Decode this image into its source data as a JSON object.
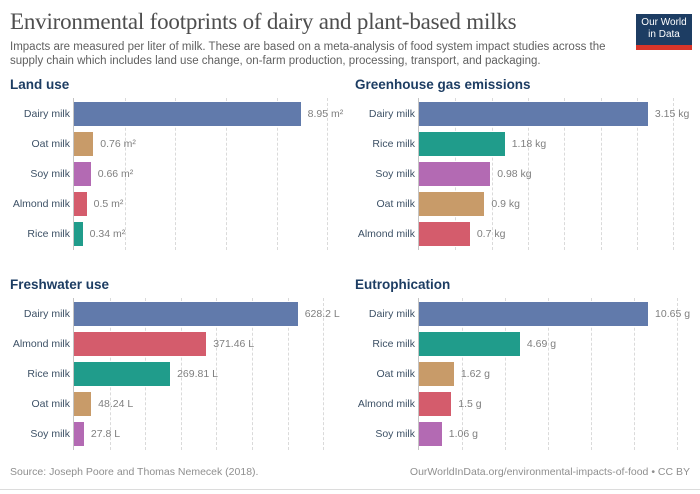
{
  "header": {
    "title": "Environmental footprints of dairy and plant-based milks",
    "subtitle": "Impacts are measured per liter of milk. These are based on a meta-analysis of food system impact studies across the supply chain which includes land use change, on-farm production, processing, transport, and packaging.",
    "logo": {
      "line1": "Our World",
      "line2": "in Data",
      "bg": "#1d3d63",
      "stripe": "#d8352a"
    }
  },
  "palette": {
    "Dairy milk": "#617aab",
    "Oat milk": "#c89b69",
    "Soy milk": "#b36ab3",
    "Almond milk": "#d45c6c",
    "Rice milk": "#209c8b"
  },
  "colors": {
    "heading": "#1d3d63",
    "category_label": "#3d5166",
    "value_label": "#7f7f7f",
    "axis_line": "#c4c4c4",
    "gridline": "#dadada"
  },
  "chart_data": [
    {
      "type": "bar",
      "title": "Land use",
      "unit": "m²",
      "categories": [
        "Dairy milk",
        "Oat milk",
        "Soy milk",
        "Almond milk",
        "Rice milk"
      ],
      "values": [
        8.95,
        0.76,
        0.66,
        0.5,
        0.34
      ],
      "value_labels": [
        "8.95 m²",
        "0.76 m²",
        "0.66 m²",
        "0.5 m²",
        "0.34 m²"
      ],
      "xmax": 10.7,
      "grid_step": 2,
      "grid": "dashed-vertical",
      "legend": "none"
    },
    {
      "type": "bar",
      "title": "Greenhouse gas emissions",
      "unit": "kg",
      "categories": [
        "Dairy milk",
        "Rice milk",
        "Soy milk",
        "Oat milk",
        "Almond milk"
      ],
      "values": [
        3.15,
        1.18,
        0.98,
        0.9,
        0.7
      ],
      "value_labels": [
        "3.15 kg",
        "1.18 kg",
        "0.98 kg",
        "0.9 kg",
        "0.7 kg"
      ],
      "xmax": 3.73,
      "grid_step": 0.5,
      "grid": "dashed-vertical",
      "legend": "none"
    },
    {
      "type": "bar",
      "title": "Freshwater use",
      "unit": "L",
      "categories": [
        "Dairy milk",
        "Almond milk",
        "Rice milk",
        "Oat milk",
        "Soy milk"
      ],
      "values": [
        628.2,
        371.46,
        269.81,
        48.24,
        27.8
      ],
      "value_labels": [
        "628.2 L",
        "371.46 L",
        "269.81 L",
        "48.24 L",
        "27.8 L"
      ],
      "xmax": 761,
      "grid_step": 100,
      "grid": "dashed-vertical",
      "legend": "none"
    },
    {
      "type": "bar",
      "title": "Eutrophication",
      "unit": "g",
      "categories": [
        "Dairy milk",
        "Rice milk",
        "Oat milk",
        "Almond milk",
        "Soy milk"
      ],
      "values": [
        10.65,
        4.69,
        1.62,
        1.5,
        1.06
      ],
      "value_labels": [
        "10.65 g",
        "4.69 g",
        "1.62 g",
        "1.5 g",
        "1.06 g"
      ],
      "xmax": 12.6,
      "grid_step": 2,
      "grid": "dashed-vertical",
      "legend": "none"
    }
  ],
  "footer": {
    "source": "Source: Joseph Poore and Thomas Nemecek (2018).",
    "link": "OurWorldInData.org/environmental-impacts-of-food • CC BY"
  }
}
